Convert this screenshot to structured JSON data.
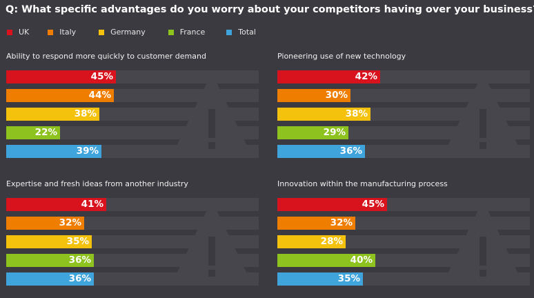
{
  "title": "Q: What specific advantages do you worry about your competitors having over your business?",
  "chart_data": {
    "type": "bar",
    "orientation": "horizontal",
    "legend_position": "top-left",
    "grid": false,
    "series_names": [
      "UK",
      "Italy",
      "Germany",
      "France",
      "Total"
    ],
    "colors": [
      "#d9131d",
      "#ef7d00",
      "#f4c20d",
      "#8dc21f",
      "#3fa3dc"
    ],
    "xlim": [
      0,
      100
    ],
    "value_format": "percent",
    "panels": [
      {
        "title": "Ability to respond more quickly to customer demand",
        "values": [
          45,
          44,
          38,
          22,
          39
        ]
      },
      {
        "title": "Pioneering use of new technology",
        "values": [
          42,
          30,
          38,
          29,
          36
        ]
      },
      {
        "title": "Expertise and fresh ideas from another industry",
        "values": [
          41,
          32,
          35,
          36,
          36
        ]
      },
      {
        "title": "Innovation within the manufacturing process",
        "values": [
          45,
          32,
          28,
          40,
          35
        ]
      }
    ]
  }
}
